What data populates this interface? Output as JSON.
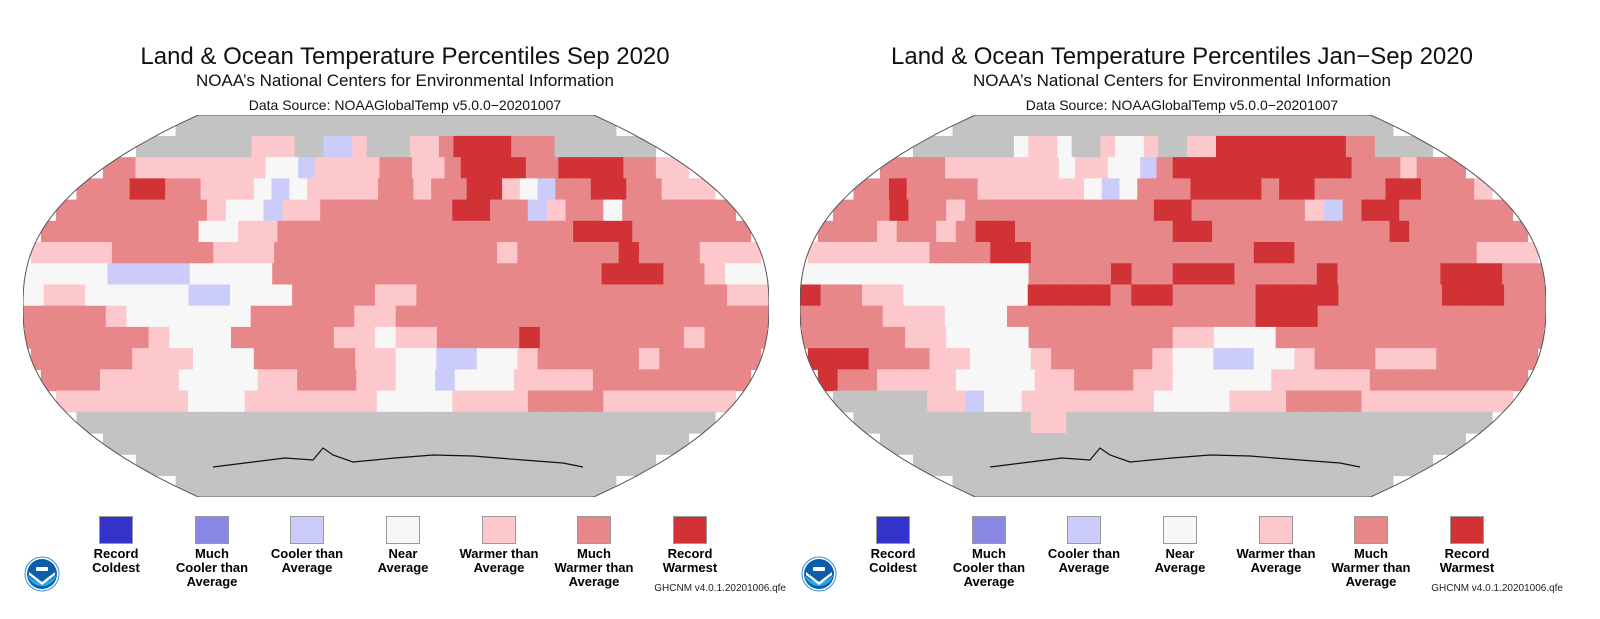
{
  "categories": [
    {
      "code": 0,
      "label_lines": [
        "Record",
        "Coldest"
      ],
      "color": "#3333cc"
    },
    {
      "code": 1,
      "label_lines": [
        "Much",
        "Cooler than",
        "Average"
      ],
      "color": "#8888e4"
    },
    {
      "code": 2,
      "label_lines": [
        "Cooler than",
        "Average"
      ],
      "color": "#ccccfa"
    },
    {
      "code": 3,
      "label_lines": [
        "Near",
        "Average"
      ],
      "color": "#f7f7f7"
    },
    {
      "code": 4,
      "label_lines": [
        "Warmer than",
        "Average"
      ],
      "color": "#fcc8cb"
    },
    {
      "code": 5,
      "label_lines": [
        "Much",
        "Warmer than",
        "Average"
      ],
      "color": "#e8878a"
    },
    {
      "code": 6,
      "label_lines": [
        "Record",
        "Warmest"
      ],
      "color": "#d03236"
    },
    {
      "code": 7,
      "label_lines": [],
      "color": "#c3c3c3"
    }
  ],
  "panels": [
    {
      "id": "sep-2020",
      "title": "Land & Ocean Temperature Percentiles Sep 2020",
      "subtitle": "NOAA’s National Centers for Environmental Information",
      "source": "Data Source: NOAAGlobalTemp v5.0.0−20201007",
      "footnote": "GHCNM v4.0.1.20201006.qfe",
      "logo": "noaa-logo",
      "legend": [
        "Record Coldest",
        "Much Cooler than Average",
        "Cooler than Average",
        "Near Average",
        "Warmer than Average",
        "Much Warmer than Average",
        "Record Warmest"
      ],
      "grid_note": "rows from 90N to 90S in 10-degree bands, columns from 180W to 180E in 10-degree bands; codes index into categories",
      "grid": [
        "777777777777777777777777777777777777",
        "777777774447722477744566665557777777",
        "554444444433244445544566665566665544",
        "555665544432344445545566432556655444",
        "555555554332445555555665524553555555",
        "555555553344555555555555555666555555",
        "444455555444555555555554555556555444",
        "333322223333555555555555555566655433",
        "344333332233355554455555555555555544",
        "555543333335555544555555555555555555",
        "555555433355555443445555655555554555",
        "555554443335555544332233455555455555",
        "555444433334455544332333444455555555",
        "444444433344444443333444455554444444",
        "777777777777777777777777777777777777",
        "777777777777777777777777777777777777",
        "777777777777777777777777777777777777",
        "777777777777777777777777777777777777"
      ]
    },
    {
      "id": "jan-sep-2020",
      "title": "Land & Ocean Temperature Percentiles Jan−Sep 2020",
      "subtitle": "NOAA’s National Centers for Environmental Information",
      "source": "Data Source: NOAAGlobalTemp v5.0.0−20201007",
      "footnote": "GHCNM v4.0.1.20201006.qfe",
      "logo": "noaa-logo",
      "legend": [
        "Record Coldest",
        "Much Cooler than Average",
        "Cooler than Average",
        "Near Average",
        "Warmer than Average",
        "Much Warmer than Average",
        "Record Warmest"
      ],
      "grid_note": "rows from 90N to 90S in 10-degree bands, columns from 180W to 180E in 10-degree bands; codes index into categories",
      "grid": [
        "777777777777777777777777777777777777",
        "777777734437743347744666666666557777",
        "555544444443443325666666666665554555",
        "556555544444432355566665665555665554",
        "555655455555555556655555542566555555",
        "555455456655555555665555555556555555",
        "444444555665555555555566555555555444",
        "333333333335555655666555565555566655",
        "655443333336666566555566665555566655",
        "555544433355555555555566655555555555",
        "555554433335555555443335555555555555",
        "666555443334555554332233455544455555",
        "655444433334455544333334444455555555",
        "777774423344444443333444555544444444",
        "777777777744777777777777777777777777",
        "777777777777777777777777777777777777",
        "777777777777777777777777777777777777",
        "777777777777777777777777777777777777"
      ]
    }
  ]
}
